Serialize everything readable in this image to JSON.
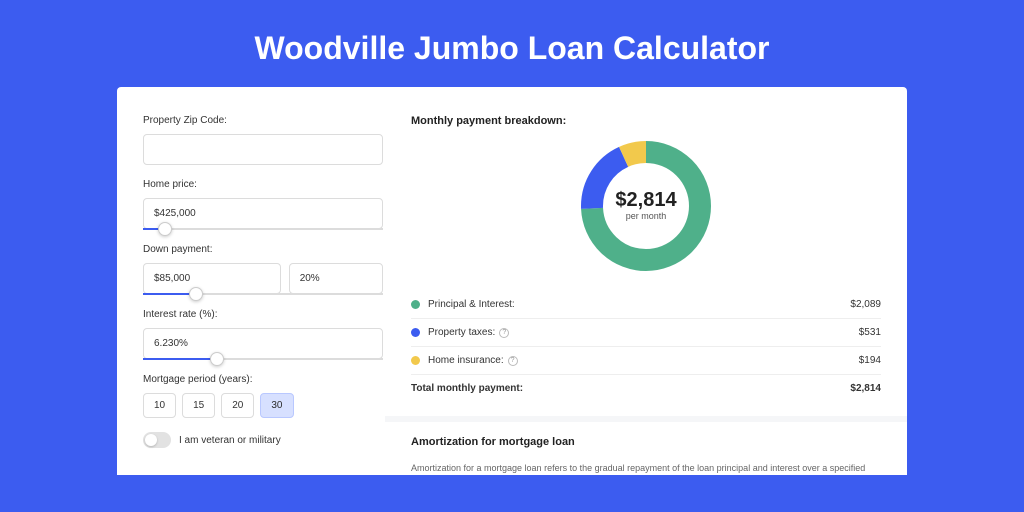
{
  "page_title": "Woodville Jumbo Loan Calculator",
  "colors": {
    "page_bg": "#3c5cf0",
    "card_bg": "#ffffff",
    "accent": "#3c5cf0"
  },
  "form": {
    "zip": {
      "label": "Property Zip Code:",
      "value": ""
    },
    "home_price": {
      "label": "Home price:",
      "value": "$425,000",
      "slider_pct": 9
    },
    "down_payment": {
      "label": "Down payment:",
      "amount": "$85,000",
      "pct": "20%",
      "slider_pct": 22
    },
    "interest_rate": {
      "label": "Interest rate (%):",
      "value": "6.230%",
      "slider_pct": 31
    },
    "mortgage_period": {
      "label": "Mortgage period (years):",
      "options": [
        "10",
        "15",
        "20",
        "30"
      ],
      "selected": "30"
    },
    "veteran": {
      "label": "I am veteran or military",
      "on": false
    }
  },
  "breakdown": {
    "heading": "Monthly payment breakdown:",
    "total_value": "$2,814",
    "total_sub": "per month",
    "items": [
      {
        "label": "Principal & Interest:",
        "value": "$2,089",
        "pct": 74.2,
        "color": "#4fb08a",
        "help": false
      },
      {
        "label": "Property taxes:",
        "value": "$531",
        "pct": 18.9,
        "color": "#3c5cf0",
        "help": true
      },
      {
        "label": "Home insurance:",
        "value": "$194",
        "pct": 6.9,
        "color": "#f2c94c",
        "help": true
      }
    ],
    "total_row": {
      "label": "Total monthly payment:",
      "value": "$2,814"
    },
    "donut": {
      "size": 130,
      "thickness": 22
    }
  },
  "amortization": {
    "heading": "Amortization for mortgage loan",
    "text": "Amortization for a mortgage loan refers to the gradual repayment of the loan principal and interest over a specified"
  }
}
